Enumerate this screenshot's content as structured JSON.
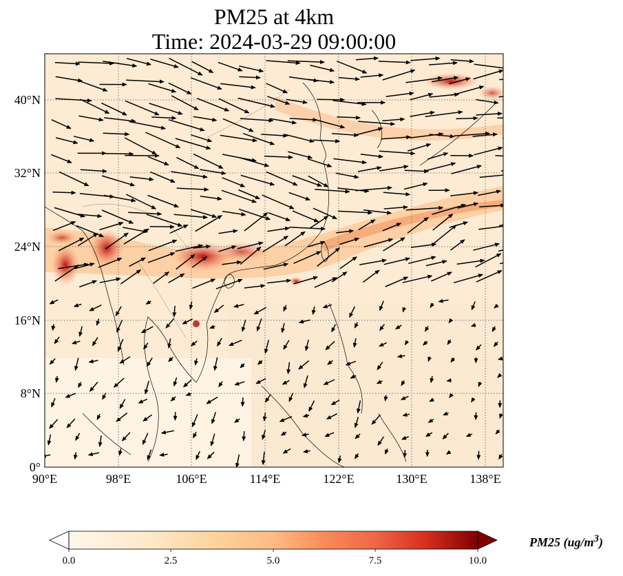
{
  "title": {
    "line1": "PM25 at 4km",
    "line2": "Time: 2024-03-29 09:00:00"
  },
  "map": {
    "projection": "PlateCarree",
    "lon_range": [
      90,
      140
    ],
    "lat_range": [
      0,
      45
    ],
    "lon_ticks": [
      "90°E",
      "98°E",
      "106°E",
      "114°E",
      "122°E",
      "130°E",
      "138°E"
    ],
    "lat_ticks": [
      "0°",
      "8°N",
      "16°N",
      "24°N",
      "32°N",
      "40°N"
    ],
    "gridlines": "dotted",
    "overlay": "wind vectors"
  },
  "colorbar": {
    "colormap": "OrRd",
    "ticks": [
      "0.0",
      "2.5",
      "5.0",
      "7.5",
      "10.0"
    ],
    "range": [
      0,
      10
    ],
    "extend": "both",
    "unit_label": "PM25 (ug/m"
  }
}
